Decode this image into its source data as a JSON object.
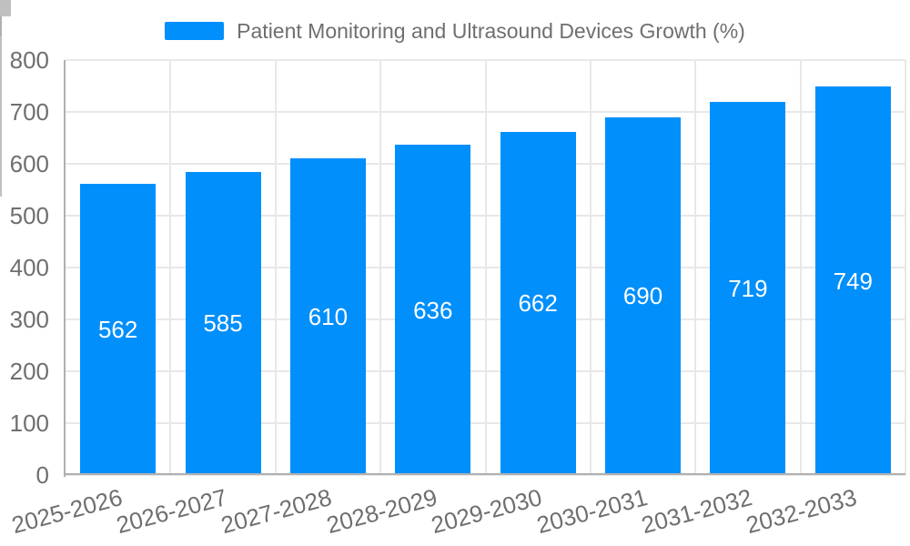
{
  "legend": {
    "label": "Patient Monitoring and Ultrasound Devices Growth (%)",
    "marker_color": "#008FFB"
  },
  "colors": {
    "bar": "#008FFB",
    "grid": "#e8e8e8",
    "axis": "#b0b0b0",
    "tick": "#c0c0c0",
    "label_text": "#6f6f6f",
    "value_text": "#ffffff",
    "background": "#ffffff"
  },
  "chart_data": {
    "type": "bar",
    "title": "Patient Monitoring and Ultrasound Devices Growth (%)",
    "categories": [
      "2025-2026",
      "2026-2027",
      "2027-2028",
      "2028-2029",
      "2029-2030",
      "2030-2031",
      "2031-2032",
      "2032-2033"
    ],
    "series": [
      {
        "name": "Patient Monitoring and Ultrasound Devices Growth (%)",
        "values": [
          562,
          585,
          610,
          636,
          662,
          690,
          719,
          749
        ]
      }
    ],
    "value_labels": [
      "562",
      "585",
      "610",
      "636",
      "662",
      "690",
      "719",
      "749"
    ],
    "xlabel": "",
    "ylabel": "",
    "ylim": [
      0,
      800
    ],
    "yticks": [
      0,
      100,
      200,
      300,
      400,
      500,
      600,
      700,
      800
    ],
    "grid": true,
    "legend_position": "top",
    "x_label_rotation_deg": -15,
    "bar_color": "#008FFB",
    "value_label_position": "middle-of-bar"
  }
}
